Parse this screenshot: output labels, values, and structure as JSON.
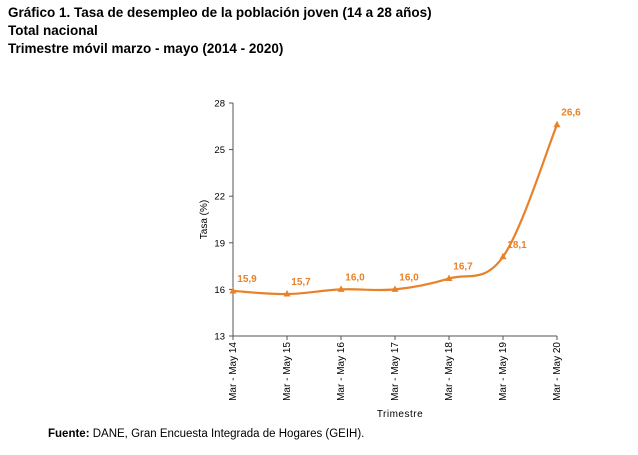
{
  "header": {
    "title": "Gráfico 1. Tasa de desempleo de la población joven (14 a 28 años)",
    "line2": "Total nacional",
    "line3": "Trimestre móvil marzo - mayo (2014 - 2020)"
  },
  "source": {
    "label": "Fuente:",
    "text": " DANE, Gran Encuesta Integrada de Hogares (GEIH)."
  },
  "chart_data": {
    "type": "line",
    "categories": [
      "Mar - May 14",
      "Mar - May 15",
      "Mar - May 16",
      "Mar - May 17",
      "Mar - May 18",
      "Mar - May 19",
      "Mar - May 20"
    ],
    "values": [
      15.9,
      15.7,
      16.0,
      16.0,
      16.7,
      18.1,
      26.6
    ],
    "value_labels": [
      "15,9",
      "15,7",
      "16,0",
      "16,0",
      "16,7",
      "18,1",
      "26,6"
    ],
    "yticks": [
      13,
      16,
      19,
      22,
      25,
      28
    ],
    "ylim": [
      13,
      28
    ],
    "xlabel": "Trimestre",
    "ylabel": "Tasa (%)",
    "series_color": "#E8822A",
    "grid": false,
    "marker": "triangle",
    "curve": "smooth"
  }
}
